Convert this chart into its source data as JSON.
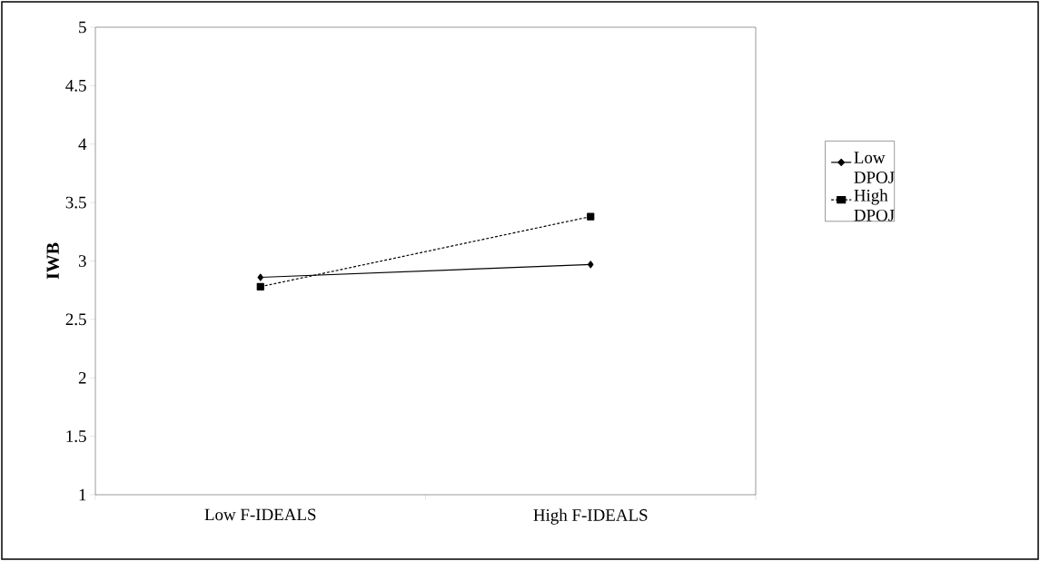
{
  "chart_data": {
    "type": "line",
    "ylabel": "IWB",
    "categories": [
      "Low F-IDEALS",
      "High F-IDEALS"
    ],
    "series": [
      {
        "name": "Low DPOJ",
        "color": "#000000",
        "values": [
          2.86,
          2.97
        ],
        "marker": "diamond",
        "line_style": "solid"
      },
      {
        "name": "High DPOJ",
        "color": "#000000",
        "values": [
          2.78,
          3.38
        ],
        "marker": "square",
        "line_style": "dashed"
      }
    ],
    "ylim": [
      1,
      5
    ],
    "yticks": [
      1,
      1.5,
      2,
      2.5,
      3,
      3.5,
      4,
      4.5,
      5
    ],
    "grid": false,
    "legend": "right"
  }
}
